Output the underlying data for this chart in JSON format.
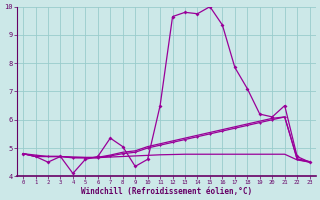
{
  "xlabel": "Windchill (Refroidissement éolien,°C)",
  "x": [
    0,
    1,
    2,
    3,
    4,
    5,
    6,
    7,
    8,
    9,
    10,
    11,
    12,
    13,
    14,
    15,
    16,
    17,
    18,
    19,
    20,
    21,
    22,
    23
  ],
  "line1": [
    4.8,
    4.7,
    4.5,
    4.7,
    4.1,
    4.6,
    4.7,
    5.35,
    5.05,
    4.35,
    4.6,
    6.5,
    9.65,
    9.8,
    9.75,
    10.0,
    9.35,
    7.85,
    7.1,
    6.2,
    6.1,
    6.5,
    4.7,
    4.5
  ],
  "line2": [
    4.8,
    4.7,
    4.7,
    4.7,
    4.65,
    4.65,
    4.65,
    4.72,
    4.8,
    4.85,
    5.0,
    5.1,
    5.2,
    5.3,
    5.4,
    5.5,
    5.6,
    5.7,
    5.8,
    5.9,
    6.0,
    6.1,
    4.6,
    4.5
  ],
  "line3": [
    4.8,
    4.7,
    4.7,
    4.7,
    4.68,
    4.67,
    4.67,
    4.75,
    4.85,
    4.9,
    5.05,
    5.15,
    5.25,
    5.35,
    5.45,
    5.55,
    5.65,
    5.75,
    5.85,
    5.95,
    6.05,
    6.1,
    4.62,
    4.52
  ],
  "line4": [
    4.8,
    4.75,
    4.7,
    4.7,
    4.67,
    4.66,
    4.66,
    4.68,
    4.7,
    4.72,
    4.74,
    4.76,
    4.77,
    4.78,
    4.78,
    4.78,
    4.78,
    4.78,
    4.78,
    4.78,
    4.78,
    4.78,
    4.58,
    4.5
  ],
  "line_color": "#990099",
  "bg_color": "#cce8e8",
  "grid_color": "#99cccc",
  "axis_color": "#660066",
  "ylim": [
    4.0,
    10.0
  ],
  "xlim": [
    -0.5,
    23.5
  ],
  "yticks": [
    4,
    5,
    6,
    7,
    8,
    9,
    10
  ],
  "xticks": [
    0,
    1,
    2,
    3,
    4,
    5,
    6,
    7,
    8,
    9,
    10,
    11,
    12,
    13,
    14,
    15,
    16,
    17,
    18,
    19,
    20,
    21,
    22,
    23
  ]
}
